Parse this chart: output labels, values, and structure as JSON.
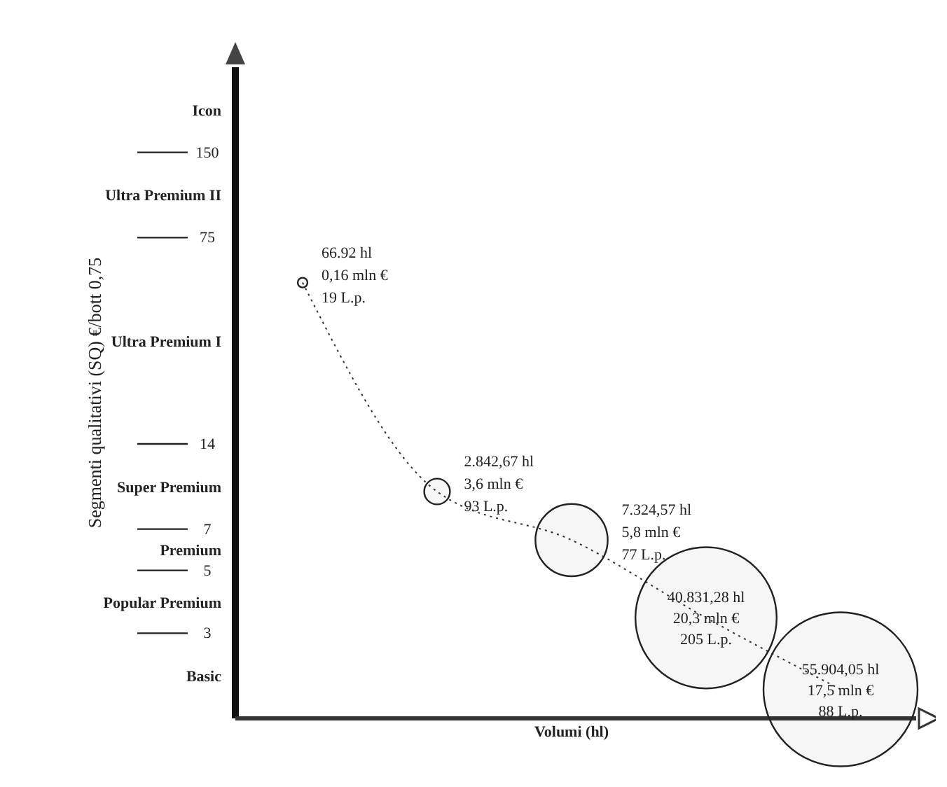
{
  "chart_data": {
    "type": "bubble",
    "xlabel": "Volumi (hl)",
    "ylabel": "Segmenti qualitativi (SQ) €/bott 0,75",
    "categories": [
      null,
      null,
      null,
      null,
      null
    ],
    "values": [
      52,
      9.5,
      6.4,
      3.4,
      1.9
    ],
    "sizes": [
      0.004,
      0.028,
      0.22,
      0.84,
      1
    ],
    "color": "#222222",
    "value_labels": [
      [
        "66.92 hl",
        "0,16 mln €",
        "19 L.p."
      ],
      [
        "2.842,67 hl",
        "3,6 mln €",
        "93 L.p."
      ],
      [
        "7.324,57 hl",
        "5,8 mln €",
        "77 L.p."
      ],
      [
        "40.831,28 hl",
        "20,3 mln €",
        "205 L.p."
      ],
      [
        "55.904,05 hl",
        "17,5 mln €",
        "88 L.p."
      ]
    ],
    "line_style": "dotted",
    "log": "y",
    "ylim": [
      1.5,
      300
    ],
    "yticks": [
      3,
      5,
      7,
      14,
      75,
      150
    ],
    "annotations": [
      "Basic",
      "Popular Premium",
      "Premium",
      "Super Premium",
      "Ultra Premium I",
      "Ultra Premium II",
      "Icon"
    ]
  }
}
